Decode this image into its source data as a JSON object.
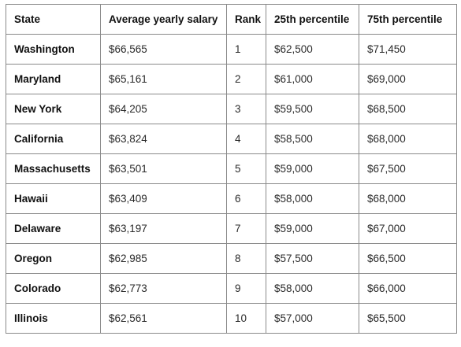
{
  "table": {
    "headers": [
      "State",
      "Average yearly salary",
      "Rank",
      "25th percentile",
      "75th percentile"
    ],
    "rows": [
      [
        "Washington",
        "$66,565",
        "1",
        "$62,500",
        "$71,450"
      ],
      [
        "Maryland",
        "$65,161",
        "2",
        "$61,000",
        "$69,000"
      ],
      [
        "New York",
        "$64,205",
        "3",
        "$59,500",
        "$68,500"
      ],
      [
        "California",
        "$63,824",
        "4",
        "$58,500",
        "$68,000"
      ],
      [
        "Massachusetts",
        "$63,501",
        "5",
        "$59,000",
        "$67,500"
      ],
      [
        "Hawaii",
        "$63,409",
        "6",
        "$58,000",
        "$68,000"
      ],
      [
        "Delaware",
        "$63,197",
        "7",
        "$59,000",
        "$67,000"
      ],
      [
        "Oregon",
        "$62,985",
        "8",
        "$57,500",
        "$66,500"
      ],
      [
        "Colorado",
        "$62,773",
        "9",
        "$58,000",
        "$66,000"
      ],
      [
        "Illinois",
        "$62,561",
        "10",
        "$57,000",
        "$65,500"
      ]
    ]
  },
  "colors": {
    "border": "#8a8a8a",
    "text": "#1a1a1a",
    "background": "#ffffff"
  }
}
